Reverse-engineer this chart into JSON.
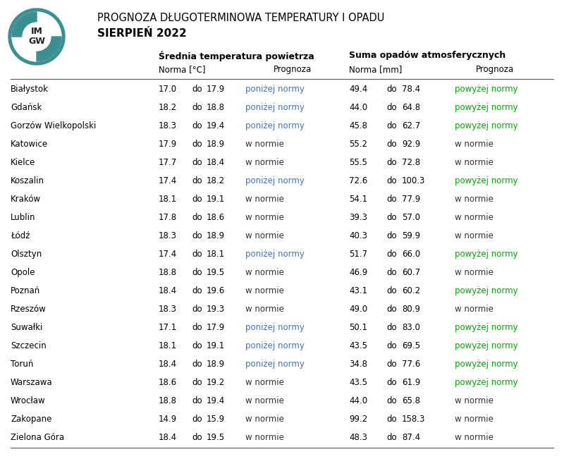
{
  "title1": "PROGNOZA DŁUGOTERMINOWA TEMPERATURY I OPADU",
  "title2": "SIERPIEŃ 2022",
  "cities": [
    "Białystok",
    "Gdańsk",
    "Gorzów Wielkopolski",
    "Katowice",
    "Kielce",
    "Koszalin",
    "Kraków",
    "Lublin",
    "Łódź",
    "Olsztyn",
    "Opole",
    "Poznań",
    "Rzeszów",
    "Suwałki",
    "Szczecin",
    "Toruń",
    "Warszawa",
    "Wrocław",
    "Zakopane",
    "Zielona Góra"
  ],
  "temp_norma_min": [
    17.0,
    18.2,
    18.3,
    17.9,
    17.7,
    17.4,
    18.1,
    17.8,
    18.3,
    17.4,
    18.8,
    18.4,
    18.3,
    17.1,
    18.1,
    18.4,
    18.6,
    18.8,
    14.9,
    18.4
  ],
  "temp_norma_max": [
    17.9,
    18.8,
    19.4,
    18.9,
    18.4,
    18.2,
    19.1,
    18.6,
    18.9,
    18.1,
    19.5,
    19.6,
    19.3,
    17.9,
    19.1,
    18.9,
    19.2,
    19.4,
    15.9,
    19.5
  ],
  "temp_prognoza": [
    "poniżej normy",
    "poniżej normy",
    "poniżej normy",
    "w normie",
    "w normie",
    "poniżej normy",
    "w normie",
    "w normie",
    "w normie",
    "poniżej normy",
    "w normie",
    "w normie",
    "w normie",
    "poniżej normy",
    "poniżej normy",
    "poniżej normy",
    "w normie",
    "w normie",
    "w normie",
    "w normie"
  ],
  "rain_norma_min": [
    49.4,
    44.0,
    45.8,
    55.2,
    55.5,
    72.6,
    54.1,
    39.3,
    40.3,
    51.7,
    46.9,
    43.1,
    49.0,
    50.1,
    43.5,
    34.8,
    43.5,
    44.0,
    99.2,
    48.3
  ],
  "rain_norma_max": [
    78.4,
    64.8,
    62.7,
    92.9,
    72.8,
    100.3,
    77.9,
    57.0,
    59.9,
    66.0,
    60.7,
    60.2,
    80.9,
    83.0,
    69.5,
    77.6,
    61.9,
    65.8,
    158.3,
    87.4
  ],
  "rain_prognoza": [
    "powyżej normy",
    "powyżej normy",
    "powyżej normy",
    "w normie",
    "w normie",
    "powyżej normy",
    "w normie",
    "w normie",
    "w normie",
    "powyżej normy",
    "w normie",
    "powyżej normy",
    "w normie",
    "powyżej normy",
    "powyżej normy",
    "powyżej normy",
    "powyżej normy",
    "w normie",
    "w normie",
    "w normie"
  ],
  "color_ponizej": "#4472c4",
  "color_powyzej": "#00aa00",
  "color_normie": "#333333",
  "bg_color": "#ffffff",
  "border_color": "#555555"
}
